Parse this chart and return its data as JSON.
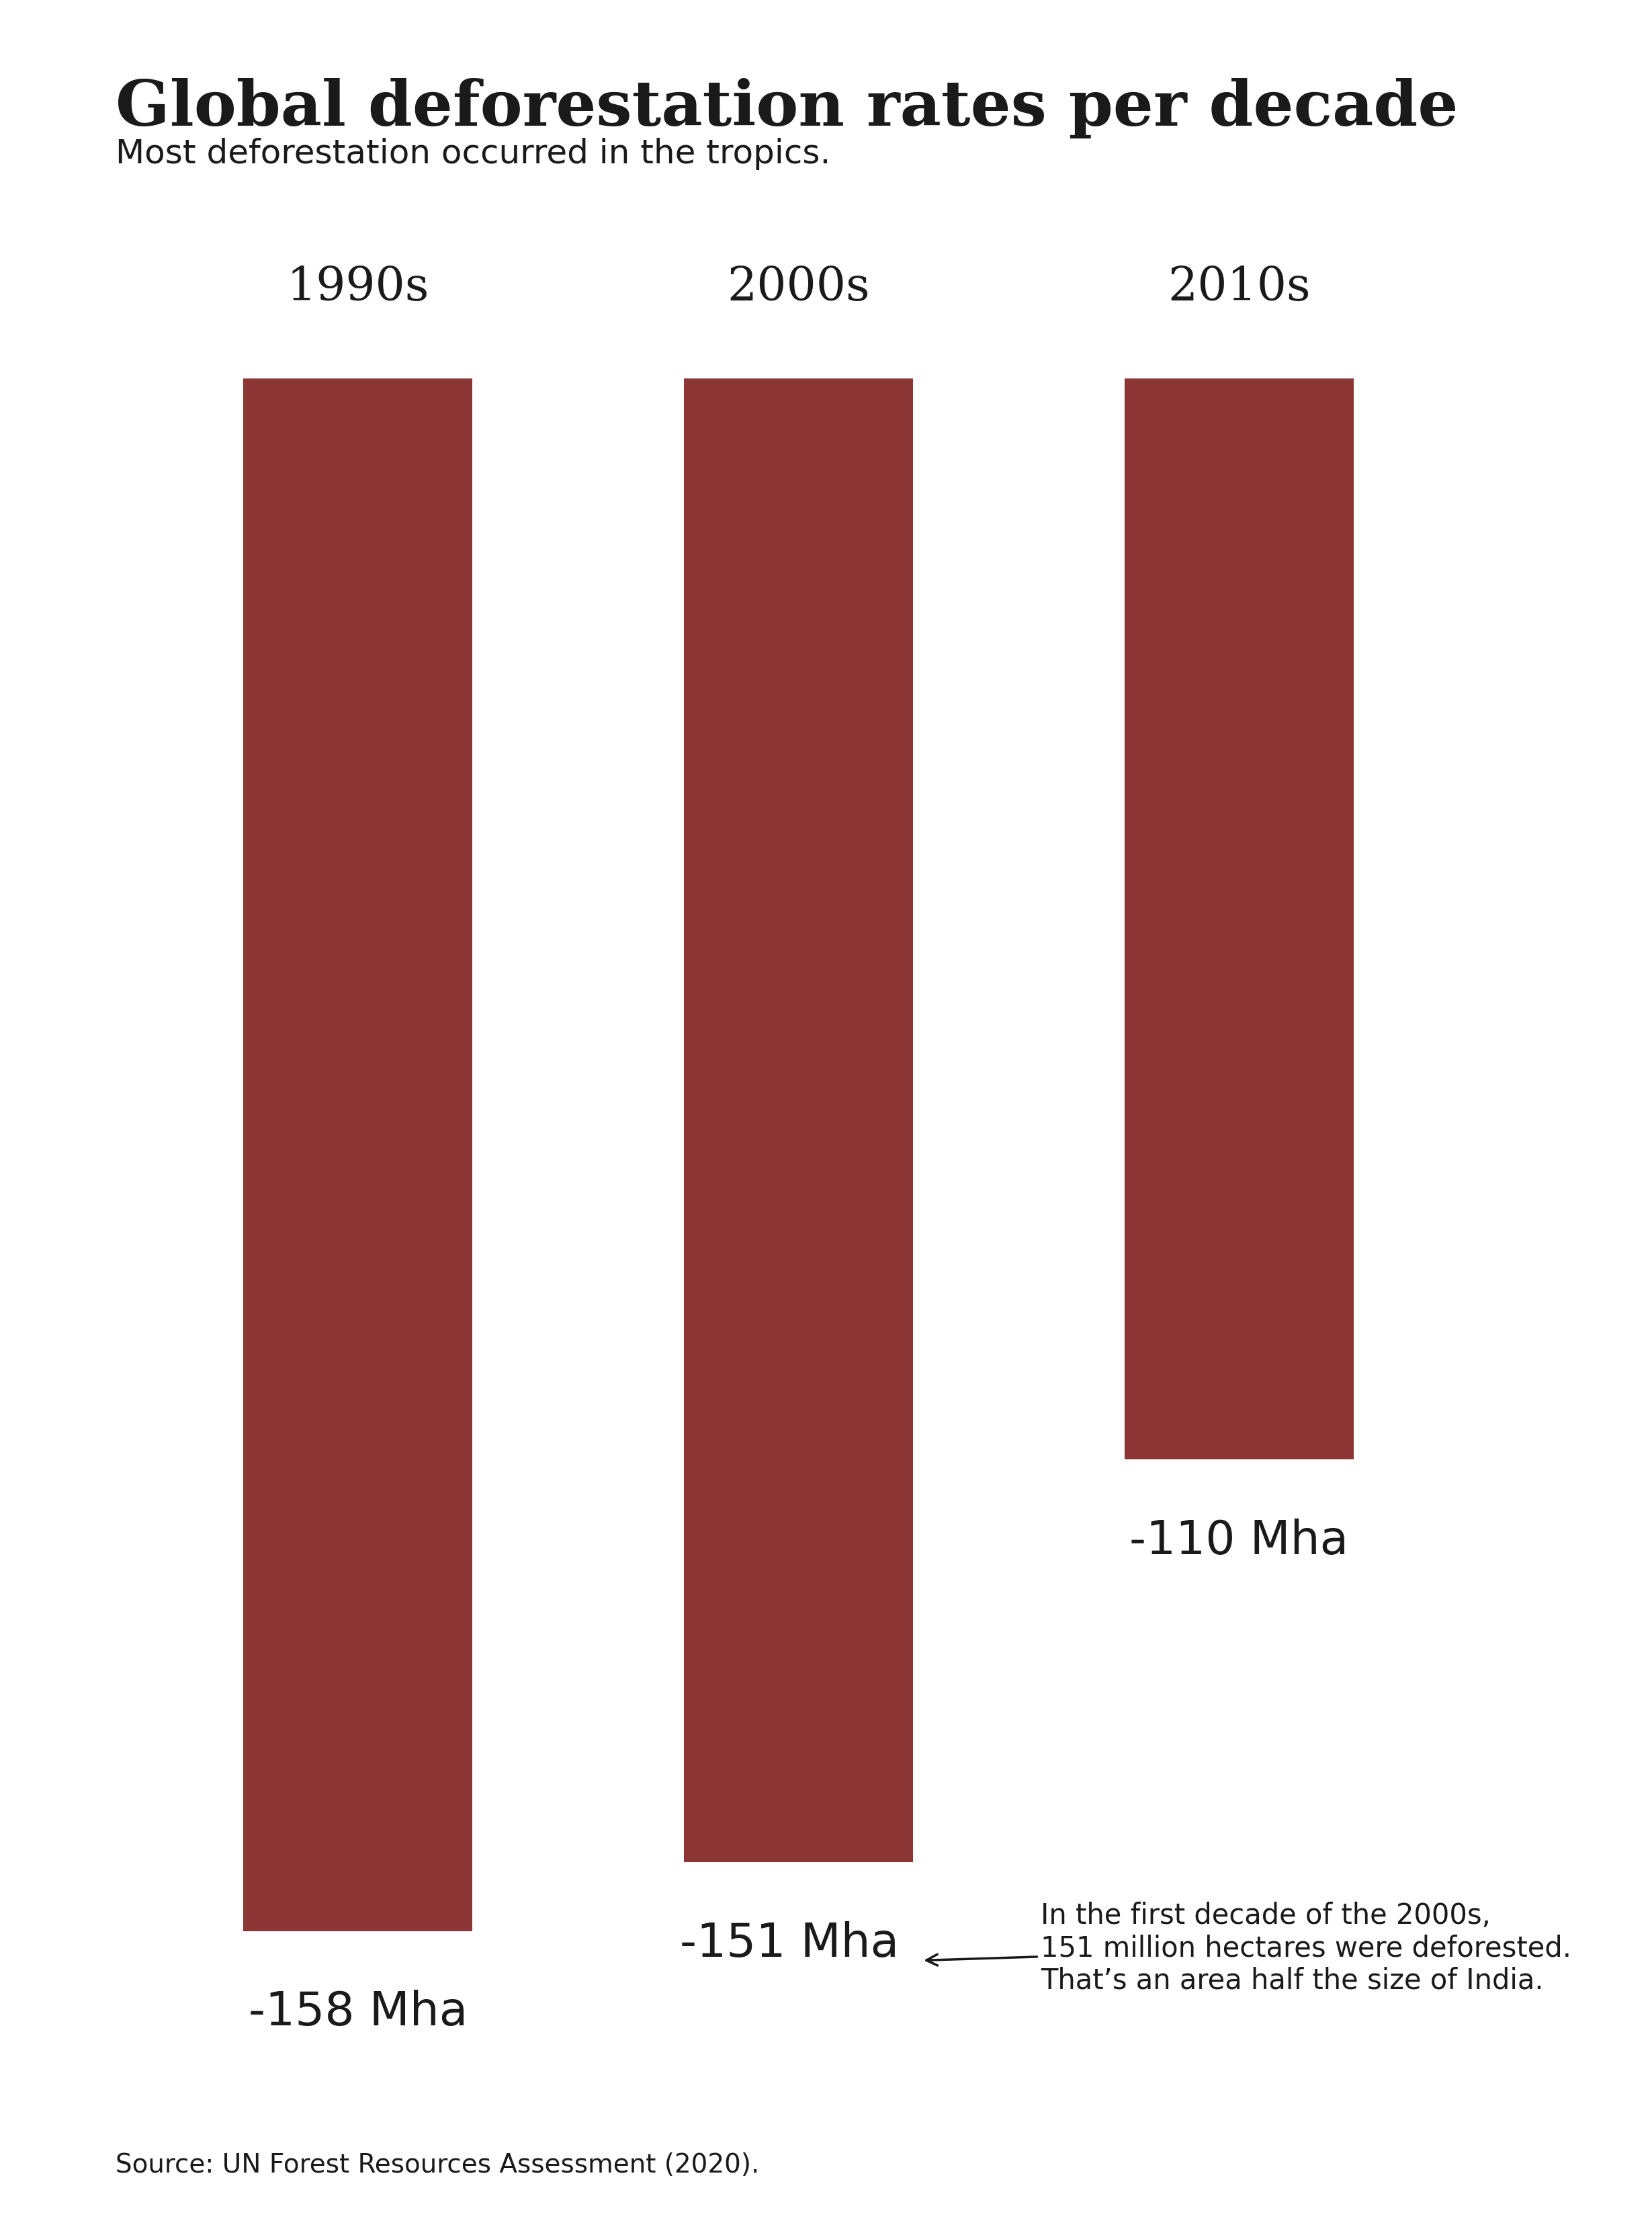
{
  "title": "Global deforestation rates per decade",
  "subtitle": "Most deforestation occurred in the tropics.",
  "categories": [
    "1990s",
    "2000s",
    "2010s"
  ],
  "values": [
    158,
    151,
    110
  ],
  "bar_color": "#8B3535",
  "background_color": "#FFFFFF",
  "text_color": "#1a1a1a",
  "value_labels": [
    "-158 Mha",
    "-151 Mha",
    "-110 Mha"
  ],
  "annotation_text": "In the first decade of the 2000s,\n151 million hectares were deforested.\nThat’s an area half the size of India.",
  "source_text": "Source: UN Forest Resources Assessment (2020).",
  "title_fontsize": 68,
  "subtitle_fontsize": 36,
  "category_fontsize": 50,
  "value_fontsize": 50,
  "annotation_fontsize": 30,
  "source_fontsize": 28,
  "ylim_max": 170,
  "bar_width": 0.52,
  "x_positions": [
    0,
    1,
    2
  ],
  "xlim": [
    -0.55,
    2.75
  ]
}
